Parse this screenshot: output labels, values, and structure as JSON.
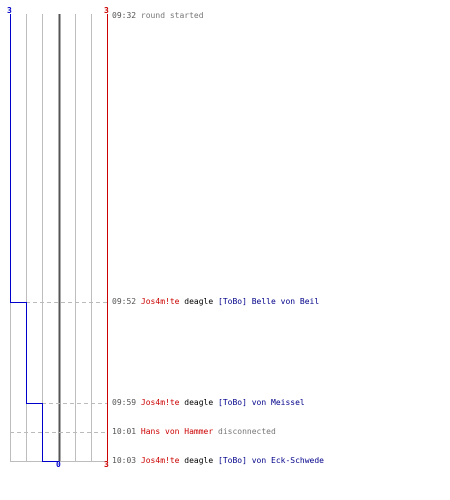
{
  "scores": {
    "left_top": "3",
    "right_top": "3",
    "bottom_center": "0",
    "bottom_right": "3"
  },
  "score_progression": [
    3,
    2,
    1,
    0
  ],
  "colors": {
    "team_red": "#cc0000",
    "team_blue": "#0000cc",
    "text_gray": "#777777"
  },
  "events": [
    {
      "time": "09:32",
      "text": "round started"
    },
    {
      "time": "09:52",
      "killer": "Jos4m!te",
      "weapon": "deagle",
      "victim": "[ToBo] Belle von Beil"
    },
    {
      "time": "09:59",
      "killer": "Jos4m!te",
      "weapon": "deagle",
      "victim": "[ToBo] von Meissel"
    },
    {
      "time": "10:01",
      "player": "Hans von Hammer",
      "text": "disconnected"
    },
    {
      "time": "10:03",
      "killer": "Jos4m!te",
      "weapon": "deagle",
      "victim": "[ToBo] von Eck-Schwede"
    }
  ]
}
